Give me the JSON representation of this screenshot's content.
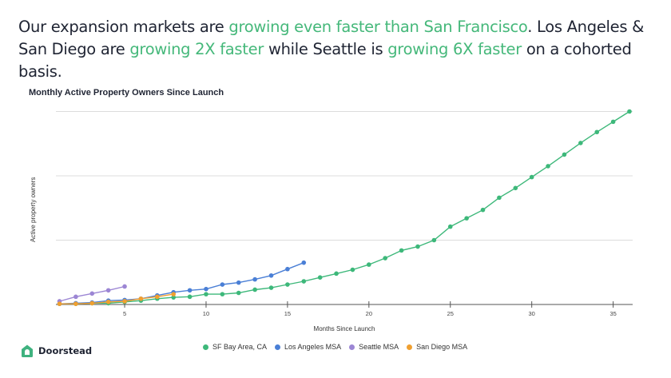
{
  "headline": {
    "line1": [
      {
        "text": "Our expansion markets are ",
        "highlight": false
      },
      {
        "text": "growing even faster than San Francisco",
        "highlight": true
      },
      {
        "text": ". Los Angeles &",
        "highlight": false
      }
    ],
    "line2": [
      {
        "text": "San Diego are ",
        "highlight": false
      },
      {
        "text": "growing 2X faster",
        "highlight": true
      },
      {
        "text": " while Seattle is ",
        "highlight": false
      },
      {
        "text": "growing 6X faster",
        "highlight": true
      },
      {
        "text": " on a cohorted basis.",
        "highlight": false
      }
    ],
    "highlight_color": "#45b87a"
  },
  "logo": {
    "icon": "house-icon",
    "text": "Doorstead",
    "color": "#3fb27f"
  },
  "chart_data": {
    "type": "line",
    "title": "Monthly Active Property Owners Since Launch",
    "xlabel": "Months Since Launch",
    "ylabel": "Active property owners",
    "xlim": [
      1,
      36
    ],
    "ylim": [
      0,
      3
    ],
    "y_units_note": "y axis unlabeled; values normalized so each gridline = 1 unit",
    "x_ticks": [
      5,
      10,
      15,
      20,
      25,
      30,
      35
    ],
    "y_gridlines": [
      1,
      2,
      3
    ],
    "grid": true,
    "legend_position": "bottom",
    "series": [
      {
        "name": "SF Bay Area, CA",
        "color": "#3db87a",
        "x": [
          1,
          2,
          3,
          4,
          5,
          6,
          7,
          8,
          9,
          10,
          11,
          12,
          13,
          14,
          15,
          16,
          17,
          18,
          19,
          20,
          21,
          22,
          23,
          24,
          25,
          26,
          27,
          28,
          29,
          30,
          31,
          32,
          33,
          34,
          35,
          36
        ],
        "values": [
          0.01,
          0.01,
          0.02,
          0.02,
          0.04,
          0.06,
          0.09,
          0.11,
          0.12,
          0.16,
          0.16,
          0.18,
          0.23,
          0.26,
          0.31,
          0.36,
          0.42,
          0.48,
          0.54,
          0.62,
          0.72,
          0.84,
          0.9,
          1.0,
          1.21,
          1.34,
          1.47,
          1.66,
          1.81,
          1.98,
          2.15,
          2.33,
          2.51,
          2.68,
          2.84,
          3.0
        ]
      },
      {
        "name": "Los Angeles MSA",
        "color": "#4a7fd6",
        "x": [
          1,
          2,
          3,
          4,
          5,
          6,
          7,
          8,
          9,
          10,
          11,
          12,
          13,
          14,
          15,
          16
        ],
        "values": [
          0.01,
          0.02,
          0.03,
          0.06,
          0.07,
          0.09,
          0.14,
          0.19,
          0.22,
          0.24,
          0.31,
          0.34,
          0.39,
          0.45,
          0.55,
          0.65
        ]
      },
      {
        "name": "Seattle MSA",
        "color": "#9c86d4",
        "x": [
          1,
          2,
          3,
          4,
          5
        ],
        "values": [
          0.05,
          0.12,
          0.17,
          0.22,
          0.28
        ]
      },
      {
        "name": "San Diego MSA",
        "color": "#f0a030",
        "x": [
          1,
          2,
          3,
          4,
          5,
          6,
          7,
          8
        ],
        "values": [
          0.01,
          0.01,
          0.02,
          0.04,
          0.05,
          0.09,
          0.12,
          0.16
        ]
      }
    ]
  }
}
